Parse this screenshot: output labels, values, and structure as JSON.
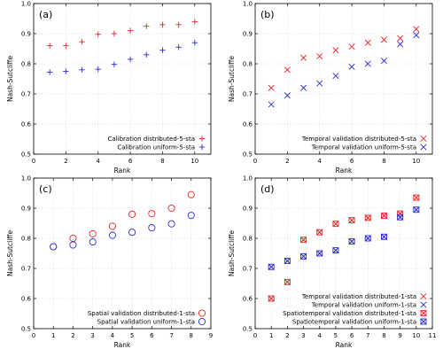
{
  "chart_data": [
    {
      "type": "scatter",
      "panel_label": "(a)",
      "xlabel": "Rank",
      "ylabel": "Nash-Sutcliffe",
      "xlim": [
        0,
        11
      ],
      "ylim": [
        0.5,
        1.0
      ],
      "xticks": [
        0,
        2,
        4,
        6,
        8,
        10
      ],
      "yticks": [
        0.5,
        0.6,
        0.7,
        0.8,
        0.9,
        1.0
      ],
      "grid": true,
      "legend_position": "bottom-right",
      "series": [
        {
          "name": "Calibration distributed-5-sta",
          "marker": "plus",
          "color": "#e8262b",
          "x": [
            1,
            2,
            3,
            4,
            5,
            6,
            7,
            8,
            9,
            10
          ],
          "y": [
            0.86,
            0.86,
            0.873,
            0.898,
            0.9,
            0.91,
            0.925,
            0.93,
            0.93,
            0.94
          ]
        },
        {
          "name": "Calibration uniform-5-sta",
          "marker": "plus",
          "color": "#2b2bd9",
          "x": [
            1,
            2,
            3,
            4,
            5,
            6,
            7,
            8,
            9,
            10
          ],
          "y": [
            0.772,
            0.775,
            0.78,
            0.782,
            0.798,
            0.815,
            0.83,
            0.845,
            0.855,
            0.87
          ]
        }
      ]
    },
    {
      "type": "scatter",
      "panel_label": "(b)",
      "xlabel": "Rank",
      "ylabel": "Nash-Sutcliffe",
      "xlim": [
        0,
        11
      ],
      "ylim": [
        0.5,
        1.0
      ],
      "xticks": [
        0,
        2,
        4,
        6,
        8,
        10
      ],
      "yticks": [
        0.5,
        0.6,
        0.7,
        0.8,
        0.9,
        1.0
      ],
      "grid": true,
      "legend_position": "bottom-right",
      "series": [
        {
          "name": "Temporal validation distributed-5-sta",
          "marker": "cross",
          "color": "#e8262b",
          "x": [
            1,
            2,
            3,
            4,
            5,
            6,
            7,
            8,
            9,
            10
          ],
          "y": [
            0.72,
            0.78,
            0.82,
            0.825,
            0.845,
            0.857,
            0.87,
            0.88,
            0.885,
            0.915
          ]
        },
        {
          "name": "Temporal validation uniform-5-sta",
          "marker": "cross",
          "color": "#2b2bd9",
          "x": [
            1,
            2,
            3,
            4,
            5,
            6,
            7,
            8,
            9,
            10
          ],
          "y": [
            0.665,
            0.695,
            0.72,
            0.735,
            0.76,
            0.79,
            0.8,
            0.81,
            0.865,
            0.895
          ]
        }
      ]
    },
    {
      "type": "scatter",
      "panel_label": "(c)",
      "xlabel": "Rank",
      "ylabel": "Nash-Sutcliffe",
      "xlim": [
        0,
        9
      ],
      "ylim": [
        0.5,
        1.0
      ],
      "xticks": [
        0,
        1,
        2,
        3,
        4,
        5,
        6,
        7,
        8,
        9
      ],
      "yticks": [
        0.5,
        0.6,
        0.7,
        0.8,
        0.9,
        1.0
      ],
      "grid": true,
      "legend_position": "bottom-right",
      "series": [
        {
          "name": "Spatial validation distributed-1-sta",
          "marker": "circle",
          "color": "#e8262b",
          "x": [
            1,
            2,
            3,
            4,
            5,
            6,
            7,
            8
          ],
          "y": [
            0.772,
            0.8,
            0.815,
            0.84,
            0.88,
            0.882,
            0.9,
            0.945
          ]
        },
        {
          "name": "Spatial validation uniform-1-sta",
          "marker": "circle",
          "color": "#2b2bd9",
          "x": [
            1,
            2,
            3,
            4,
            5,
            6,
            7,
            8
          ],
          "y": [
            0.772,
            0.778,
            0.788,
            0.81,
            0.82,
            0.835,
            0.848,
            0.876
          ]
        }
      ]
    },
    {
      "type": "scatter",
      "panel_label": "(d)",
      "xlabel": "Rank",
      "ylabel": "Nash-Sutcliffe",
      "xlim": [
        0,
        11
      ],
      "ylim": [
        0.5,
        1.0
      ],
      "xticks": [
        0,
        1,
        2,
        3,
        4,
        5,
        6,
        7,
        8,
        9,
        10,
        11
      ],
      "yticks": [
        0.5,
        0.6,
        0.7,
        0.8,
        0.9,
        1.0
      ],
      "grid": true,
      "legend_position": "bottom-right",
      "series": [
        {
          "name": "Temporal validation distributed-1-sta",
          "marker": "cross",
          "color": "#e8262b",
          "x": [
            1,
            2,
            3,
            4,
            5,
            6,
            7,
            8,
            9,
            10
          ],
          "y": [
            0.6,
            0.655,
            0.795,
            0.82,
            0.848,
            0.86,
            0.868,
            0.875,
            0.882,
            0.935
          ]
        },
        {
          "name": "Temporal validation uniform-1-sta",
          "marker": "cross",
          "color": "#2b2bd9",
          "x": [
            1,
            2,
            3,
            4,
            5,
            6,
            7,
            8,
            9,
            10
          ],
          "y": [
            0.705,
            0.725,
            0.74,
            0.75,
            0.76,
            0.79,
            0.8,
            0.805,
            0.87,
            0.895
          ]
        },
        {
          "name": "Spatiotemporal validation distributed-1-sta",
          "marker": "boxcross",
          "color": "#e8262b",
          "x": [
            1,
            2,
            3,
            4,
            5,
            6,
            7,
            8,
            9,
            10
          ],
          "y": [
            0.6,
            0.655,
            0.795,
            0.82,
            0.848,
            0.86,
            0.868,
            0.875,
            0.882,
            0.935
          ]
        },
        {
          "name": "Spatiotemporal validation uniform-1-sta",
          "marker": "boxcross",
          "color": "#2b2bd9",
          "x": [
            1,
            2,
            3,
            4,
            5,
            6,
            7,
            8,
            9,
            10
          ],
          "y": [
            0.705,
            0.725,
            0.74,
            0.75,
            0.76,
            0.79,
            0.8,
            0.805,
            0.87,
            0.895
          ]
        }
      ]
    }
  ]
}
